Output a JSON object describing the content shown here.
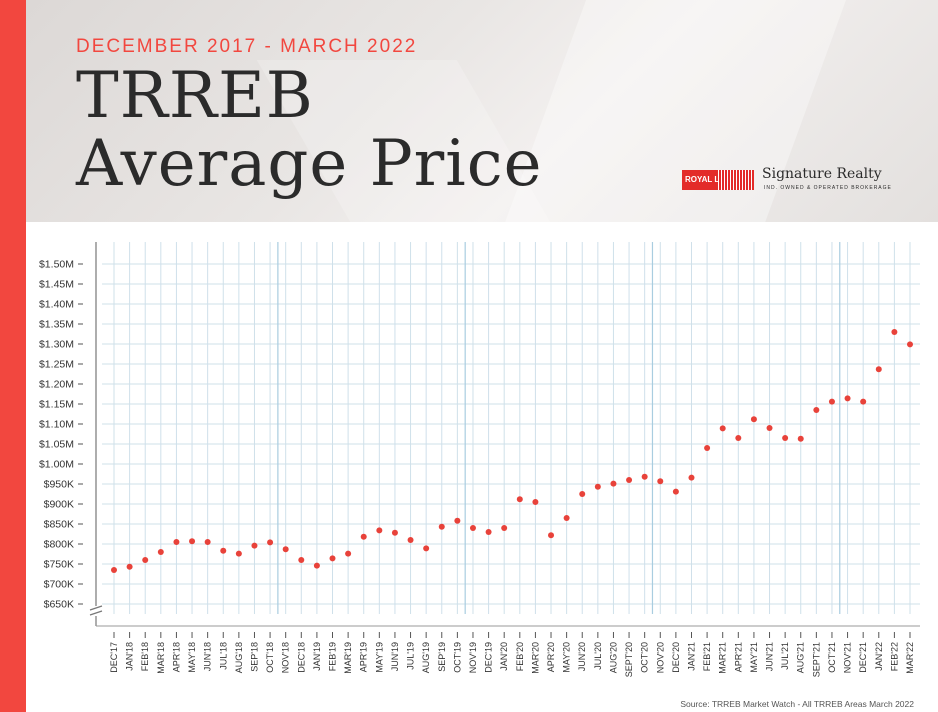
{
  "header": {
    "subtitle": "DECEMBER 2017 - MARCH 2022",
    "title_line1": "TRREB",
    "title_line2": "Average Price"
  },
  "brand": {
    "logo_text": "ROYAL LEPAGE",
    "name": "Signature Realty",
    "tagline": "IND. OWNED & OPERATED BROKERAGE"
  },
  "source": "Source: TRREB Market Watch - All TRREB Areas March 2022",
  "colors": {
    "accent": "#f2473f",
    "point": "#e8423a",
    "grid": "#cfe0ea",
    "major_grid": "#a9cde0"
  },
  "chart_data": {
    "type": "scatter",
    "title": "TRREB Average Price",
    "xlabel": "",
    "ylabel": "",
    "ylim": [
      650000,
      1500000
    ],
    "y_ticks": [
      {
        "value": 650000,
        "label": "$650K"
      },
      {
        "value": 700000,
        "label": "$700K"
      },
      {
        "value": 750000,
        "label": "$750K"
      },
      {
        "value": 800000,
        "label": "$800K"
      },
      {
        "value": 850000,
        "label": "$850K"
      },
      {
        "value": 900000,
        "label": "$900K"
      },
      {
        "value": 950000,
        "label": "$950K"
      },
      {
        "value": 1000000,
        "label": "$1.00M"
      },
      {
        "value": 1050000,
        "label": "$1.05M"
      },
      {
        "value": 1100000,
        "label": "$1.10M"
      },
      {
        "value": 1150000,
        "label": "$1.15M"
      },
      {
        "value": 1200000,
        "label": "$1.20M"
      },
      {
        "value": 1250000,
        "label": "$1.25M"
      },
      {
        "value": 1300000,
        "label": "$1.30M"
      },
      {
        "value": 1350000,
        "label": "$1.35M"
      },
      {
        "value": 1400000,
        "label": "$1.40M"
      },
      {
        "value": 1450000,
        "label": "$1.45M"
      },
      {
        "value": 1500000,
        "label": "$1.50M"
      }
    ],
    "categories": [
      "DEC'17",
      "JAN'18",
      "FEB'18",
      "MAR'18",
      "APR'18",
      "MAY'18",
      "JUN'18",
      "JUL'18",
      "AUG'18",
      "SEP'18",
      "OCT'18",
      "NOV'18",
      "DEC'18",
      "JAN'19",
      "FEB'19",
      "MAR'19",
      "APR'19",
      "MAY'19",
      "JUN'19",
      "JUL'19",
      "AUG'19",
      "SEP'19",
      "OCT'19",
      "NOV'19",
      "DEC'19",
      "JAN'20",
      "FEB'20",
      "MAR'20",
      "APR'20",
      "MAY'20",
      "JUN'20",
      "JUL'20",
      "AUG'20",
      "SEPT'20",
      "OCT'20",
      "NOV'20",
      "DEC'20",
      "JAN'21",
      "FEB'21",
      "MAR'21",
      "APR'21",
      "MAY'21",
      "JUN'21",
      "JUL'21",
      "AUG'21",
      "SEPT'21",
      "OCT'21",
      "NOV'21",
      "DEC'21",
      "JAN'22",
      "FEB'22",
      "MAR'22"
    ],
    "values": [
      735000,
      743000,
      760000,
      780000,
      805000,
      807000,
      805000,
      783000,
      776000,
      796000,
      804000,
      787000,
      760000,
      746000,
      764000,
      776000,
      818000,
      834000,
      828000,
      810000,
      789000,
      843000,
      858000,
      840000,
      830000,
      840000,
      912000,
      905000,
      822000,
      865000,
      925000,
      943000,
      951000,
      960000,
      968000,
      957000,
      931000,
      966000,
      1040000,
      1089000,
      1065000,
      1112000,
      1090000,
      1065000,
      1063000,
      1135000,
      1156000,
      1164000,
      1156000,
      1237000,
      1330000,
      1299000
    ],
    "major_gridlines_after": [
      "OCT'18",
      "OCT'19",
      "OCT'20",
      "OCT'21"
    ]
  }
}
